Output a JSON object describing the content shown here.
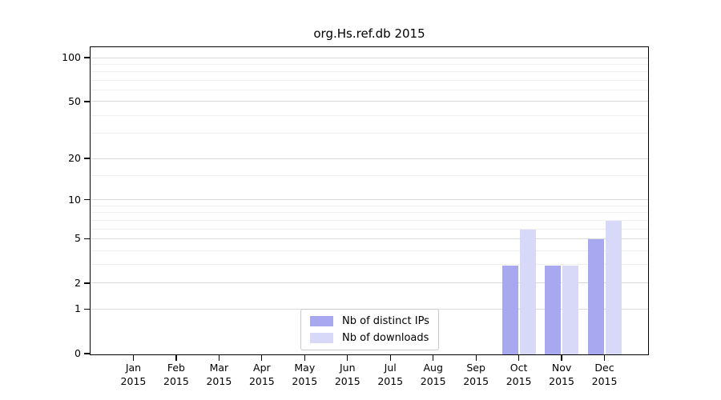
{
  "chart_data": {
    "type": "bar",
    "title": "org.Hs.ref.db 2015",
    "categories": [
      "Jan",
      "Feb",
      "Mar",
      "Apr",
      "May",
      "Jun",
      "Jul",
      "Aug",
      "Sep",
      "Oct",
      "Nov",
      "Dec"
    ],
    "x_tick_year": "2015",
    "series": [
      {
        "name": "Nb of distinct IPs",
        "color": "#a8a8f0",
        "values": [
          null,
          null,
          null,
          null,
          null,
          null,
          null,
          null,
          null,
          3,
          3,
          5
        ]
      },
      {
        "name": "Nb of downloads",
        "color": "#d8d8f8",
        "values": [
          null,
          null,
          null,
          null,
          null,
          null,
          null,
          null,
          null,
          6,
          3,
          7
        ]
      }
    ],
    "xlabel": "",
    "ylabel": "",
    "y_scale": "log1p",
    "y_axis_max": 118,
    "y_major_ticks": [
      0,
      1,
      2,
      5,
      10,
      20,
      50,
      100
    ],
    "y_minor_ticks": [
      3,
      4,
      6,
      7,
      8,
      9,
      15,
      30,
      40,
      60,
      70,
      80,
      90
    ],
    "grid": "on",
    "legend_position": "inside-bottom-center"
  }
}
